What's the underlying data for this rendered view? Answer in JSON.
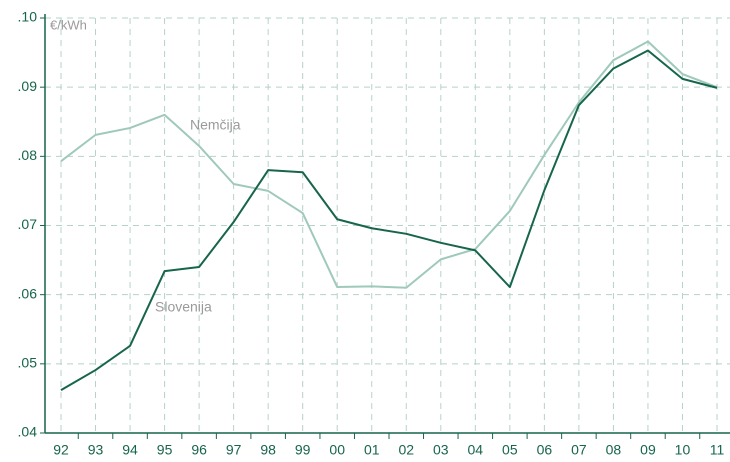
{
  "chart_data": {
    "type": "line",
    "y_label": "€/kWh",
    "categories": [
      "92",
      "93",
      "94",
      "95",
      "96",
      "97",
      "98",
      "99",
      "00",
      "01",
      "02",
      "03",
      "04",
      "05",
      "06",
      "07",
      "08",
      "09",
      "10",
      "11"
    ],
    "series": [
      {
        "name": "Slovenija",
        "color": "#17654d",
        "values": [
          0.0462,
          0.0491,
          0.0526,
          0.0634,
          0.064,
          0.0705,
          0.078,
          0.0777,
          0.0709,
          0.0696,
          0.0688,
          0.0675,
          0.0664,
          0.0611,
          0.0751,
          0.0874,
          0.0927,
          0.0953,
          0.0912,
          0.0899
        ]
      },
      {
        "name": "Nemčija",
        "color": "#9fc9ba",
        "values": [
          0.0793,
          0.0831,
          0.0841,
          0.086,
          0.0815,
          0.076,
          0.075,
          0.0718,
          0.0611,
          0.0612,
          0.061,
          0.0651,
          0.0666,
          0.0721,
          0.0802,
          0.0878,
          0.0939,
          0.0966,
          0.0919,
          0.09
        ]
      }
    ],
    "ylim": [
      0.04,
      0.1
    ],
    "yticks": [
      {
        "value": 0.04,
        "label": ".04"
      },
      {
        "value": 0.05,
        "label": ".05"
      },
      {
        "value": 0.06,
        "label": ".06"
      },
      {
        "value": 0.07,
        "label": ".07"
      },
      {
        "value": 0.08,
        "label": ".08"
      },
      {
        "value": 0.09,
        "label": ".09"
      },
      {
        "value": 0.1,
        "label": ".10"
      }
    ],
    "grid": true
  }
}
